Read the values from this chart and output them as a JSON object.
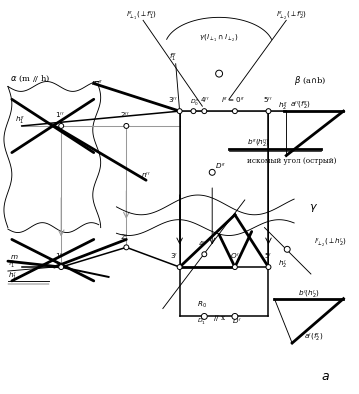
{
  "bg_color": "#ffffff",
  "lw_thick": 2.0,
  "lw_mid": 1.1,
  "lw_thin": 0.65,
  "lw_gray": 0.75,
  "fs_label": 7.0,
  "fs_small": 6.0,
  "fs_tiny": 5.2
}
